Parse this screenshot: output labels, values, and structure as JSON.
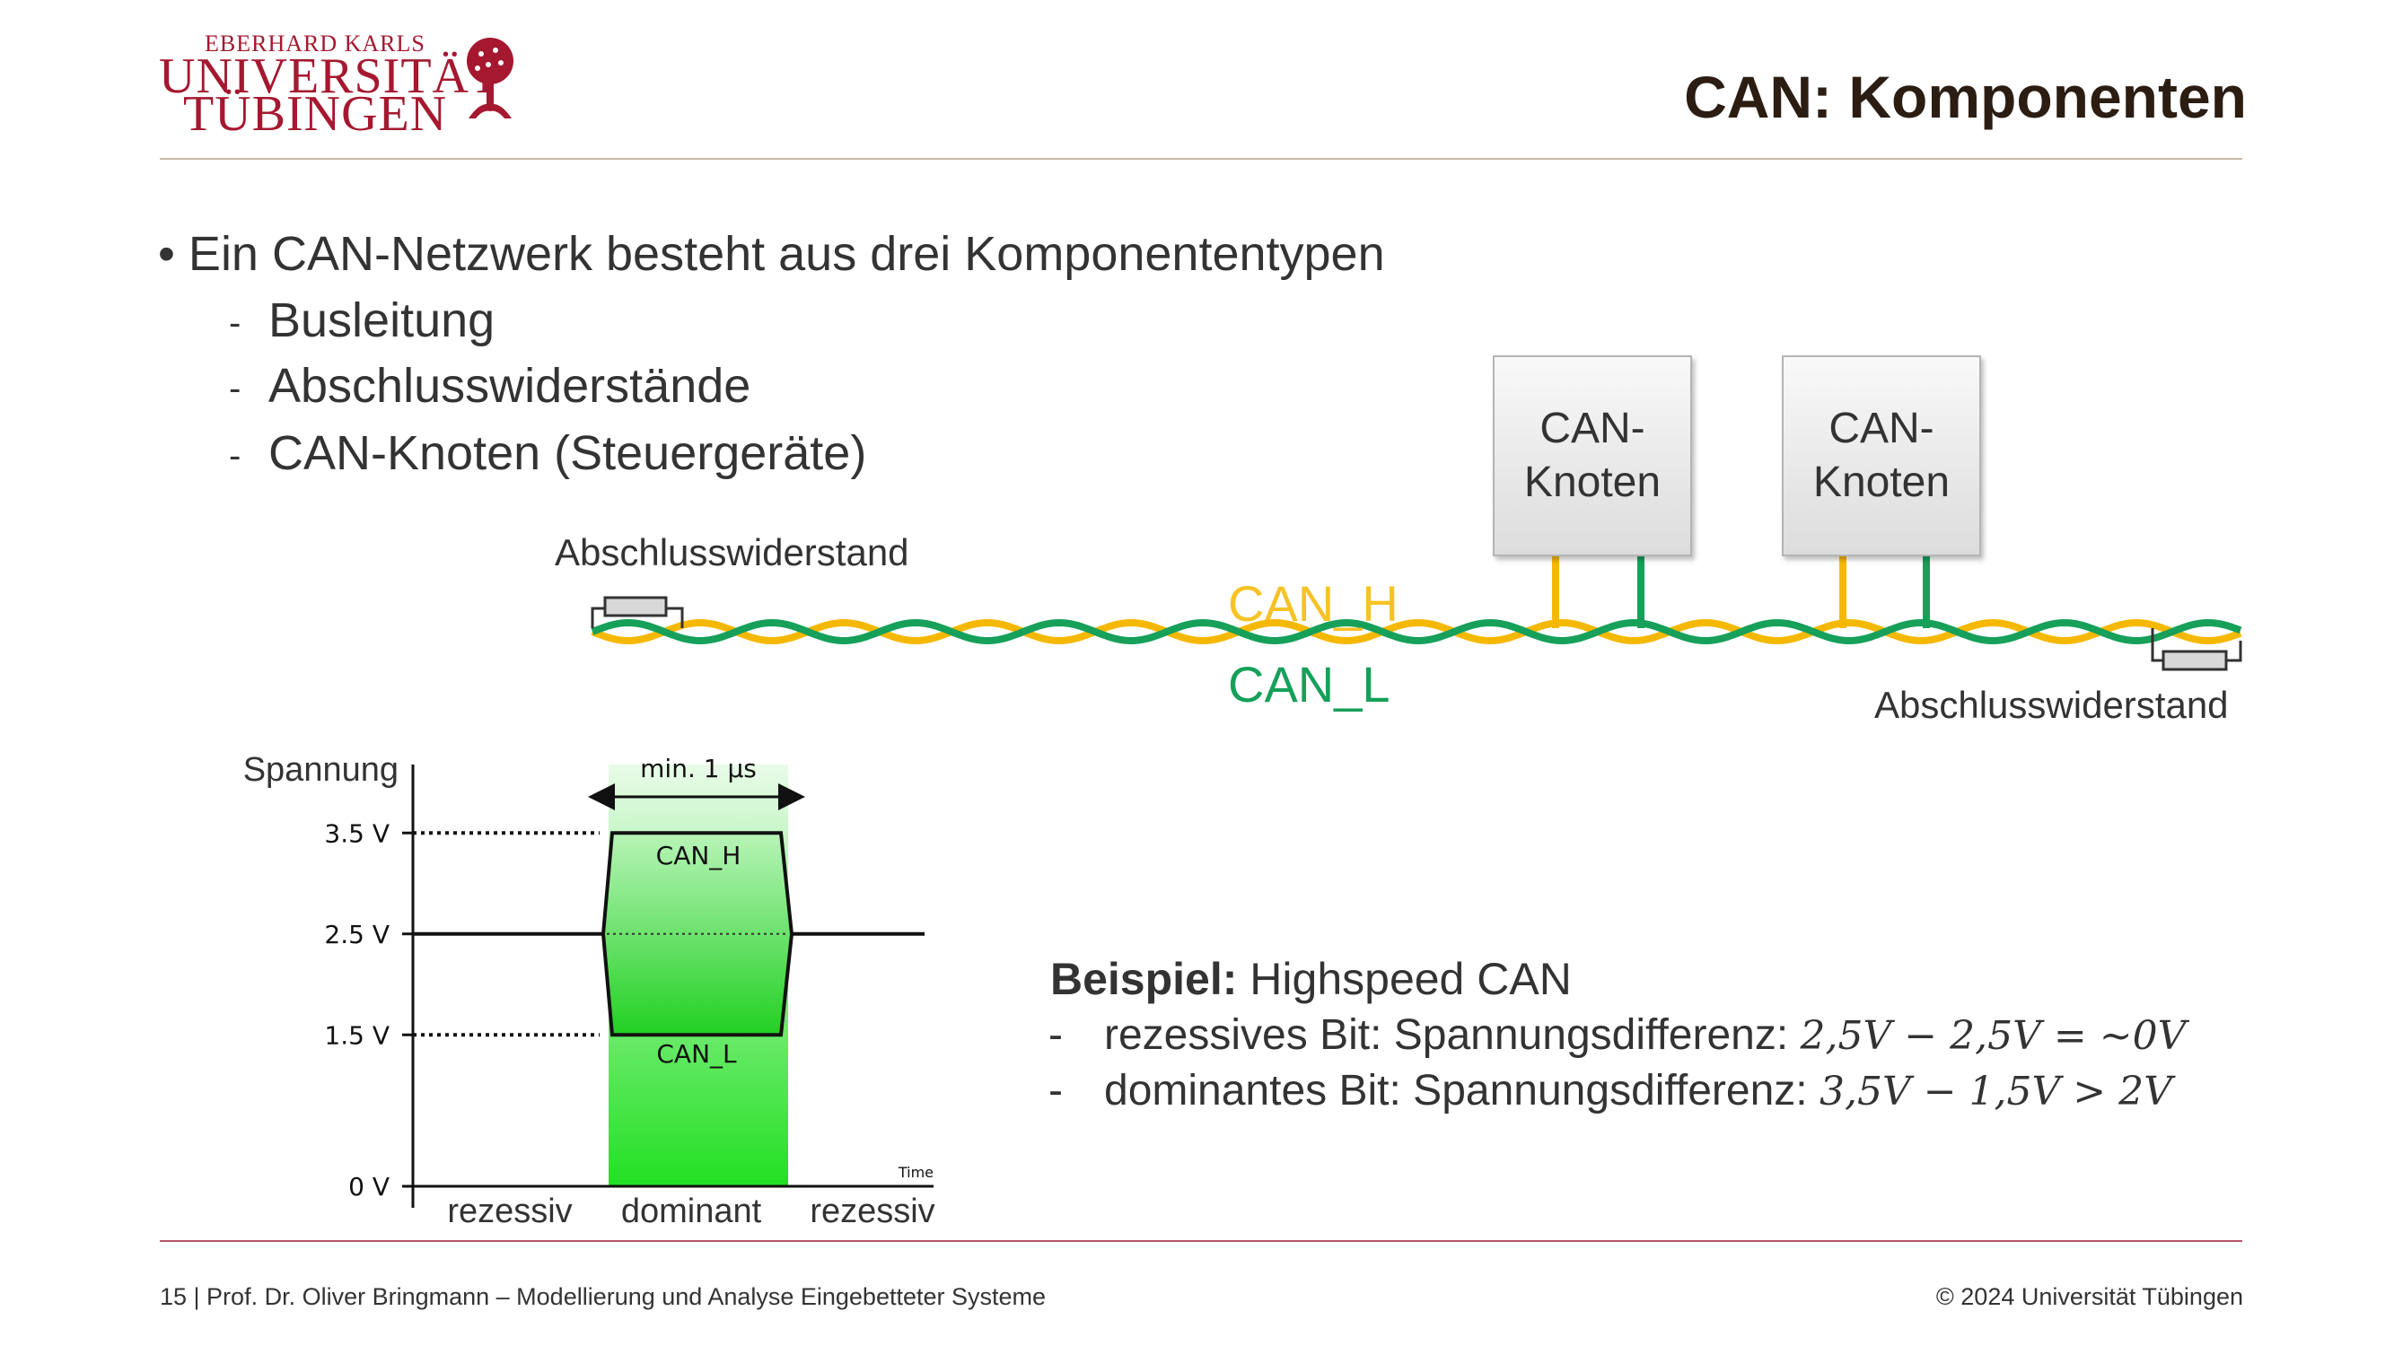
{
  "header": {
    "logo": {
      "line1": "EBERHARD KARLS",
      "line2": "UNIVERSITÄT",
      "line3": "TÜBINGEN"
    },
    "title": "CAN: Komponenten"
  },
  "bullets": {
    "main": "Ein CAN-Netzwerk besteht aus drei Komponententypen",
    "items": [
      "Busleitung",
      "Abschlusswiderstände",
      "CAN-Knoten (Steuergeräte)"
    ]
  },
  "bus_diagram": {
    "node_labels": [
      "CAN-\nKnoten",
      "CAN-\nKnoten"
    ],
    "node_line1": "CAN-",
    "node_line2": "Knoten",
    "termination_left": "Abschlusswiderstand",
    "termination_right": "Abschlusswiderstand",
    "can_h": "CAN_H",
    "can_l": "CAN_L",
    "colors": {
      "can_h": "#f5b800",
      "can_l": "#16a05a"
    }
  },
  "voltage_diagram": {
    "ylabel": "Spannung",
    "xlabel": "Time",
    "ticks": [
      "3.5 V",
      "2.5 V",
      "1.5 V",
      "0 V"
    ],
    "tick_values": [
      3.5,
      2.5,
      1.5,
      0
    ],
    "min_duration": "min. 1 µs",
    "can_h": "CAN_H",
    "can_l": "CAN_L",
    "phases": [
      "rezessiv",
      "dominant",
      "rezessiv"
    ],
    "levels": {
      "recessive": 2.5,
      "dominant_high": 3.5,
      "dominant_low": 1.5
    }
  },
  "example": {
    "title_bold": "Beispiel:",
    "title_rest": " Highspeed CAN",
    "dash": "-",
    "line1_text": "rezessives Bit: Spannungsdifferenz: ",
    "line1_math": "2,5V − 2,5V = ~0V",
    "line2_text": "dominantes Bit: Spannungsdifferenz: ",
    "line2_math": "3,5V − 1,5V  > 2V"
  },
  "footer": {
    "left": "15 | Prof. Dr. Oliver Bringmann – Modellierung und Analyse Eingebetteter Systeme",
    "right": "© 2024 Universität Tübingen"
  }
}
